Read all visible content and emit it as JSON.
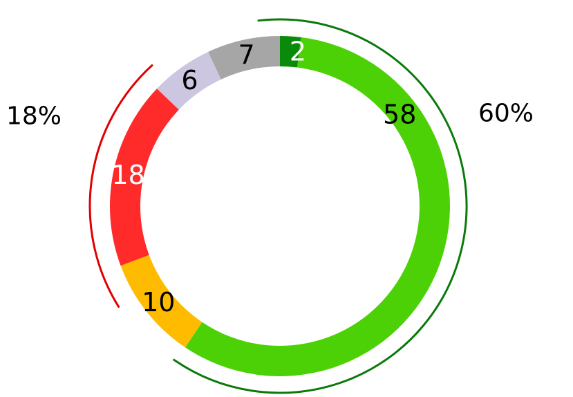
{
  "chart_data": {
    "type": "pie",
    "variant": "donut",
    "segments": [
      {
        "label": "2",
        "value": 2,
        "color": "#0a8a0a",
        "label_color": "#ffffff"
      },
      {
        "label": "58",
        "value": 58,
        "color": "#4cd106",
        "label_color": "#000000"
      },
      {
        "label": "10",
        "value": 10,
        "color": "#ffbb00",
        "label_color": "#000000"
      },
      {
        "label": "18",
        "value": 18,
        "color": "#ff2a2a",
        "label_color": "#ffffff"
      },
      {
        "label": "6",
        "value": 6,
        "color": "#ccc6e0",
        "label_color": "#000000"
      },
      {
        "label": "7",
        "value": 7,
        "color": "#a6a6a6",
        "label_color": "#000000"
      }
    ],
    "groups": [
      {
        "label": "60%",
        "segments": [
          0,
          1
        ],
        "color": "#0a7a0a"
      },
      {
        "label": "18%",
        "segments": [
          3
        ],
        "color": "#e00000"
      }
    ]
  }
}
